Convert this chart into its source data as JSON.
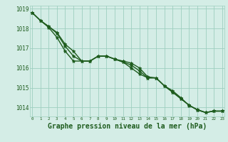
{
  "line1": [
    1018.8,
    1018.4,
    1018.1,
    1017.8,
    1017.2,
    1016.85,
    1016.35,
    1016.35,
    1016.6,
    1016.6,
    1016.45,
    1016.35,
    1016.25,
    1016.0,
    1015.55,
    1015.5,
    1015.1,
    1014.85,
    1014.5,
    1014.1,
    1013.9,
    1013.75,
    1013.82,
    1013.82
  ],
  "line2": [
    1018.8,
    1018.4,
    1018.1,
    1017.75,
    1017.1,
    1016.6,
    1016.35,
    1016.35,
    1016.6,
    1016.6,
    1016.45,
    1016.3,
    1016.0,
    1015.7,
    1015.5,
    1015.5,
    1015.1,
    1014.78,
    1014.45,
    1014.12,
    1013.88,
    1013.75,
    1013.82,
    1013.82
  ],
  "line3": [
    1018.8,
    1018.4,
    1018.05,
    1017.55,
    1016.85,
    1016.35,
    1016.35,
    1016.35,
    1016.6,
    1016.6,
    1016.45,
    1016.3,
    1016.15,
    1015.85,
    1015.5,
    1015.5,
    1015.1,
    1014.78,
    1014.45,
    1014.12,
    1013.88,
    1013.75,
    1013.82,
    1013.82
  ],
  "x": [
    0,
    1,
    2,
    3,
    4,
    5,
    6,
    7,
    8,
    9,
    10,
    11,
    12,
    13,
    14,
    15,
    16,
    17,
    18,
    19,
    20,
    21,
    22,
    23
  ],
  "xlim": [
    -0.3,
    23.3
  ],
  "ylim": [
    1013.55,
    1019.15
  ],
  "yticks": [
    1014,
    1015,
    1016,
    1017,
    1018,
    1019
  ],
  "xtick_labels": [
    "0",
    "1",
    "2",
    "3",
    "4",
    "5",
    "6",
    "7",
    "8",
    "9",
    "10",
    "11",
    "12",
    "13",
    "14",
    "15",
    "16",
    "17",
    "18",
    "19",
    "20",
    "21",
    "22",
    "23"
  ],
  "xlabel": "Graphe pression niveau de la mer (hPa)",
  "bg_color": "#d4ede6",
  "line_color": "#1e5c1e",
  "grid_color": "#9ecfbf",
  "marker": "*",
  "linewidth": 1.0,
  "fontsize_xlabel": 7.0,
  "fontsize_ytick": 5.5,
  "fontsize_xtick": 4.2
}
